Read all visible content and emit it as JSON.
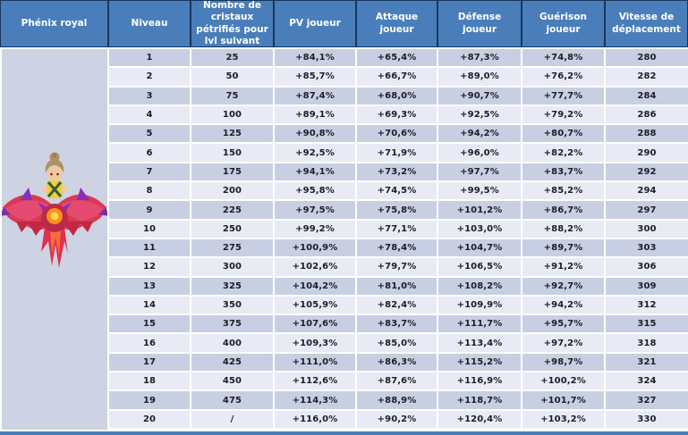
{
  "table": {
    "columns": [
      "Phénix royal",
      "Niveau",
      "Nombre de cristaux pétrifiés pour lvl suivant",
      "PV joueur",
      "Attaque joueur",
      "Défense joueur",
      "Guérison joueur",
      "Vitesse de déplacement"
    ],
    "rows": [
      [
        "1",
        "25",
        "+84,1%",
        "+65,4%",
        "+87,3%",
        "+74,8%",
        "280"
      ],
      [
        "2",
        "50",
        "+85,7%",
        "+66,7%",
        "+89,0%",
        "+76,2%",
        "282"
      ],
      [
        "3",
        "75",
        "+87,4%",
        "+68,0%",
        "+90,7%",
        "+77,7%",
        "284"
      ],
      [
        "4",
        "100",
        "+89,1%",
        "+69,3%",
        "+92,5%",
        "+79,2%",
        "286"
      ],
      [
        "5",
        "125",
        "+90,8%",
        "+70,6%",
        "+94,2%",
        "+80,7%",
        "288"
      ],
      [
        "6",
        "150",
        "+92,5%",
        "+71,9%",
        "+96,0%",
        "+82,2%",
        "290"
      ],
      [
        "7",
        "175",
        "+94,1%",
        "+73,2%",
        "+97,7%",
        "+83,7%",
        "292"
      ],
      [
        "8",
        "200",
        "+95,8%",
        "+74,5%",
        "+99,5%",
        "+85,2%",
        "294"
      ],
      [
        "9",
        "225",
        "+97,5%",
        "+75,8%",
        "+101,2%",
        "+86,7%",
        "297"
      ],
      [
        "10",
        "250",
        "+99,2%",
        "+77,1%",
        "+103,0%",
        "+88,2%",
        "300"
      ],
      [
        "11",
        "275",
        "+100,9%",
        "+78,4%",
        "+104,7%",
        "+89,7%",
        "303"
      ],
      [
        "12",
        "300",
        "+102,6%",
        "+79,7%",
        "+106,5%",
        "+91,2%",
        "306"
      ],
      [
        "13",
        "325",
        "+104,2%",
        "+81,0%",
        "+108,2%",
        "+92,7%",
        "309"
      ],
      [
        "14",
        "350",
        "+105,9%",
        "+82,4%",
        "+109,9%",
        "+94,2%",
        "312"
      ],
      [
        "15",
        "375",
        "+107,6%",
        "+83,7%",
        "+111,7%",
        "+95,7%",
        "315"
      ],
      [
        "16",
        "400",
        "+109,3%",
        "+85,0%",
        "+113,4%",
        "+97,2%",
        "318"
      ],
      [
        "17",
        "425",
        "+111,0%",
        "+86,3%",
        "+115,2%",
        "+98,7%",
        "321"
      ],
      [
        "18",
        "450",
        "+112,6%",
        "+87,6%",
        "+116,9%",
        "+100,2%",
        "324"
      ],
      [
        "19",
        "475",
        "+114,3%",
        "+88,9%",
        "+118,7%",
        "+101,7%",
        "327"
      ],
      [
        "20",
        "/",
        "+116,0%",
        "+90,2%",
        "+120,4%",
        "+103,2%",
        "330"
      ]
    ]
  },
  "icons": {
    "phoenix_mount": "phoenix-mount-image"
  },
  "colors": {
    "header_blue": "#4A7EBA",
    "header_border_dark": "#17365D",
    "row_odd": "#C9CFE2",
    "row_even": "#E9EBF4",
    "image_cell_bg": "#CED3E4",
    "footer_blue": "#4A7EBA"
  }
}
